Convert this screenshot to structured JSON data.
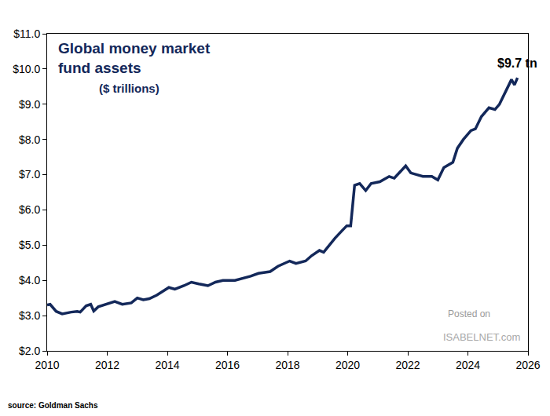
{
  "chart_data": {
    "type": "line",
    "title": "Global money market\nfund assets",
    "subtitle": "($ trillions)",
    "annotations": [
      "$9.7 tn"
    ],
    "source": "source: Goldman Sachs",
    "watermark": [
      "Posted on",
      "ISABELNET.com"
    ],
    "color": "#13285a",
    "grid": false,
    "x": [
      2010.0,
      2010.1,
      2010.3,
      2010.5,
      2010.8,
      2011.0,
      2011.1,
      2011.3,
      2011.45,
      2011.55,
      2011.7,
      2012.1,
      2012.25,
      2012.5,
      2012.8,
      2013.0,
      2013.2,
      2013.4,
      2013.65,
      2014.05,
      2014.25,
      2014.55,
      2014.8,
      2015.05,
      2015.35,
      2015.6,
      2015.85,
      2016.25,
      2016.5,
      2016.77,
      2017.03,
      2017.42,
      2017.68,
      2018.07,
      2018.28,
      2018.6,
      2018.8,
      2019.06,
      2019.2,
      2019.38,
      2019.58,
      2019.8,
      2019.97,
      2020.1,
      2020.23,
      2020.4,
      2020.6,
      2020.78,
      2021.07,
      2021.38,
      2021.55,
      2021.93,
      2022.1,
      2022.5,
      2022.8,
      2023.0,
      2023.2,
      2023.5,
      2023.65,
      2023.85,
      2024.1,
      2024.25,
      2024.45,
      2024.7,
      2024.9,
      2025.05,
      2025.3,
      2025.45,
      2025.55,
      2025.65
    ],
    "values": [
      3.3,
      3.32,
      3.12,
      3.05,
      3.1,
      3.12,
      3.1,
      3.28,
      3.32,
      3.13,
      3.25,
      3.35,
      3.4,
      3.32,
      3.36,
      3.5,
      3.45,
      3.48,
      3.58,
      3.8,
      3.75,
      3.85,
      3.95,
      3.9,
      3.85,
      3.95,
      4.0,
      4.0,
      4.05,
      4.12,
      4.2,
      4.25,
      4.4,
      4.55,
      4.48,
      4.55,
      4.7,
      4.85,
      4.8,
      5.0,
      5.2,
      5.4,
      5.55,
      5.55,
      6.7,
      6.75,
      6.55,
      6.75,
      6.8,
      6.95,
      6.9,
      7.25,
      7.05,
      6.95,
      6.95,
      6.85,
      7.2,
      7.35,
      7.75,
      8.0,
      8.25,
      8.3,
      8.65,
      8.9,
      8.85,
      9.0,
      9.45,
      9.7,
      9.55,
      9.75
    ],
    "xlim": [
      2010,
      2026
    ],
    "xticks": [
      2010,
      2012,
      2014,
      2016,
      2018,
      2020,
      2022,
      2024,
      2026
    ],
    "ylim": [
      2,
      11
    ],
    "yticks": [
      {
        "value": 2,
        "label": "$2.0"
      },
      {
        "value": 3,
        "label": "$3.0"
      },
      {
        "value": 4,
        "label": "$4.0"
      },
      {
        "value": 5,
        "label": "$5.0"
      },
      {
        "value": 6,
        "label": "$6.0"
      },
      {
        "value": 7,
        "label": "$7.0"
      },
      {
        "value": 8,
        "label": "$8.0"
      },
      {
        "value": 9,
        "label": "$9.0"
      },
      {
        "value": 10,
        "label": "$10.0"
      },
      {
        "value": 11,
        "label": "$11.0"
      }
    ]
  }
}
